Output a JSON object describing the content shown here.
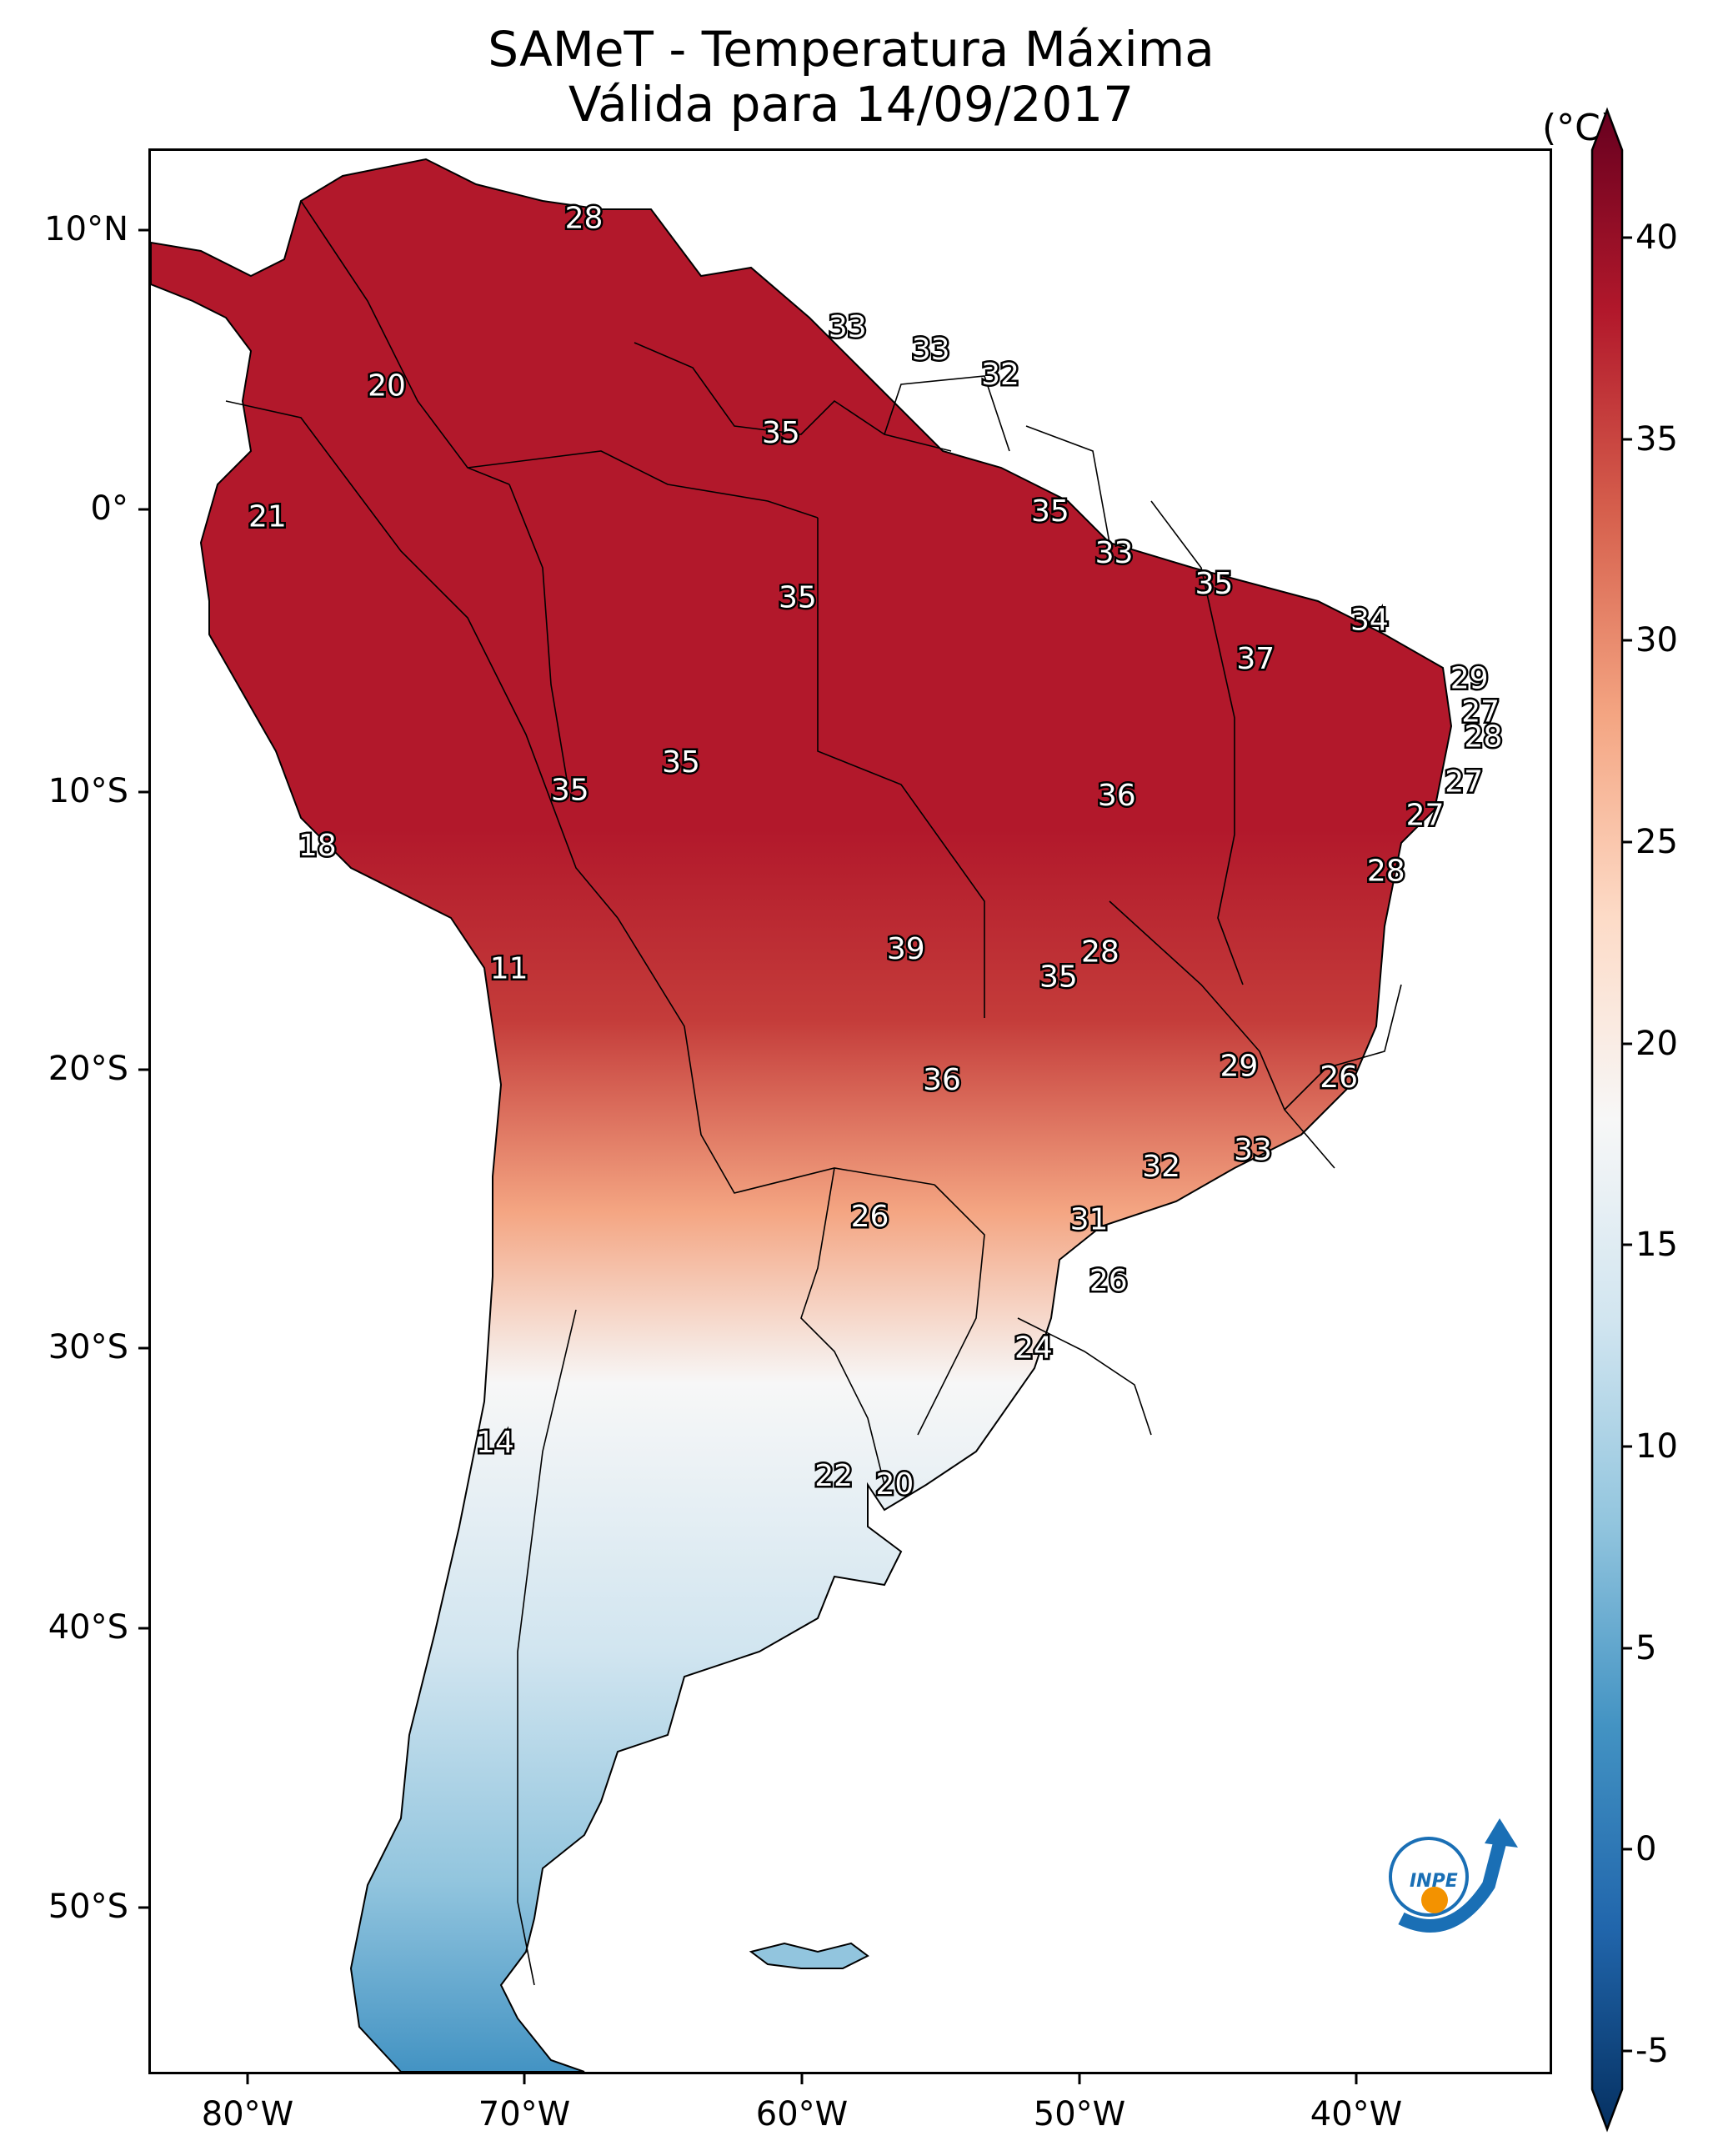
{
  "title": "SAMeT - Temperatura Máxima",
  "subtitle": "Válida para 14/09/2017",
  "lat_ticks": [
    "10°N",
    "0°",
    "10°S",
    "20°S",
    "30°S",
    "40°S",
    "50°S"
  ],
  "lon_ticks": [
    "80°W",
    "70°W",
    "60°W",
    "50°W",
    "40°W"
  ],
  "colorbar": {
    "unit": "(°C)",
    "ticks": [
      "40",
      "35",
      "30",
      "25",
      "20",
      "15",
      "10",
      "5",
      "0",
      "-5"
    ],
    "range": [
      -5,
      40
    ],
    "colors": [
      "#053061",
      "#2166ac",
      "#4393c3",
      "#92c5de",
      "#d1e5f0",
      "#f7f7f7",
      "#fddbc7",
      "#f4a582",
      "#d6604d",
      "#b2182b",
      "#67001f"
    ]
  },
  "logo_text": "INPE",
  "station_labels": [
    {
      "value": "28",
      "lon": -67.4,
      "lat": 10.5
    },
    {
      "value": "20",
      "lon": -74.5,
      "lat": 4.5
    },
    {
      "value": "33",
      "lon": -57.9,
      "lat": 6.6
    },
    {
      "value": "33",
      "lon": -54.9,
      "lat": 5.8
    },
    {
      "value": "32",
      "lon": -52.4,
      "lat": 4.9
    },
    {
      "value": "35",
      "lon": -60.3,
      "lat": 2.8
    },
    {
      "value": "21",
      "lon": -78.8,
      "lat": -0.2
    },
    {
      "value": "35",
      "lon": -50.6,
      "lat": 0.0
    },
    {
      "value": "33",
      "lon": -48.3,
      "lat": -1.5
    },
    {
      "value": "35",
      "lon": -44.7,
      "lat": -2.6
    },
    {
      "value": "34",
      "lon": -39.1,
      "lat": -3.9
    },
    {
      "value": "35",
      "lon": -59.7,
      "lat": -3.1
    },
    {
      "value": "37",
      "lon": -43.2,
      "lat": -5.3
    },
    {
      "value": "29",
      "lon": -35.5,
      "lat": -6.0
    },
    {
      "value": "27",
      "lon": -35.1,
      "lat": -7.2
    },
    {
      "value": "28",
      "lon": -35.0,
      "lat": -8.1
    },
    {
      "value": "27",
      "lon": -35.7,
      "lat": -9.7
    },
    {
      "value": "27",
      "lon": -37.1,
      "lat": -10.9
    },
    {
      "value": "35",
      "lon": -63.9,
      "lat": -9.0
    },
    {
      "value": "35",
      "lon": -67.9,
      "lat": -10.0
    },
    {
      "value": "36",
      "lon": -48.2,
      "lat": -10.2
    },
    {
      "value": "18",
      "lon": -77.0,
      "lat": -12.0
    },
    {
      "value": "28",
      "lon": -38.5,
      "lat": -12.9
    },
    {
      "value": "11",
      "lon": -70.1,
      "lat": -16.4
    },
    {
      "value": "39",
      "lon": -55.8,
      "lat": -15.7
    },
    {
      "value": "28",
      "lon": -48.8,
      "lat": -15.8
    },
    {
      "value": "35",
      "lon": -50.3,
      "lat": -16.7
    },
    {
      "value": "29",
      "lon": -43.8,
      "lat": -19.9
    },
    {
      "value": "26",
      "lon": -40.2,
      "lat": -20.3
    },
    {
      "value": "36",
      "lon": -54.5,
      "lat": -20.4
    },
    {
      "value": "33",
      "lon": -43.3,
      "lat": -22.9
    },
    {
      "value": "32",
      "lon": -46.6,
      "lat": -23.5
    },
    {
      "value": "26",
      "lon": -57.1,
      "lat": -25.3
    },
    {
      "value": "31",
      "lon": -49.2,
      "lat": -25.4
    },
    {
      "value": "26",
      "lon": -48.5,
      "lat": -27.6
    },
    {
      "value": "24",
      "lon": -51.2,
      "lat": -30.0
    },
    {
      "value": "14",
      "lon": -70.6,
      "lat": -33.4
    },
    {
      "value": "22",
      "lon": -58.4,
      "lat": -34.6
    },
    {
      "value": "20",
      "lon": -56.2,
      "lat": -34.9
    }
  ]
}
